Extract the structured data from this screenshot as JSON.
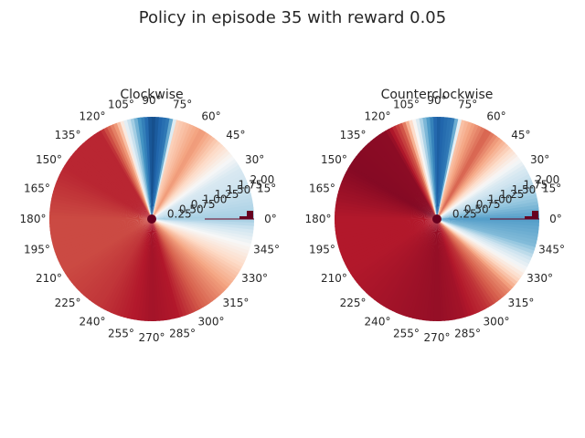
{
  "figure_title": "Policy in episode 35 with reward 0.05",
  "chart_data": [
    {
      "type": "heatmap",
      "projection": "polar",
      "title": "Clockwise",
      "angle_tick_labels": [
        "0°",
        "15°",
        "30°",
        "45°",
        "60°",
        "75°",
        "90°",
        "105°",
        "120°",
        "135°",
        "150°",
        "165°",
        "180°",
        "195°",
        "210°",
        "225°",
        "240°",
        "255°",
        "270°",
        "285°",
        "300°",
        "315°",
        "330°",
        "345°"
      ],
      "radial_tick_labels": [
        "0.25",
        "0.50",
        "0.75",
        "1.00",
        "1.25",
        "1.50",
        "1.75",
        "2.00"
      ],
      "radial_range": [
        0,
        2.0
      ],
      "colormap": "RdBu_r",
      "value_range": [
        0,
        1
      ],
      "value_by_angle_deg": [
        [
          0,
          0.33
        ],
        [
          15,
          0.38
        ],
        [
          30,
          0.42
        ],
        [
          45,
          0.58
        ],
        [
          60,
          0.72
        ],
        [
          75,
          0.62
        ],
        [
          80,
          0.15
        ],
        [
          90,
          0.05
        ],
        [
          97,
          0.2
        ],
        [
          105,
          0.45
        ],
        [
          110,
          0.7
        ],
        [
          120,
          0.88
        ],
        [
          150,
          0.88
        ],
        [
          180,
          0.83
        ],
        [
          210,
          0.83
        ],
        [
          240,
          0.86
        ],
        [
          270,
          0.92
        ],
        [
          285,
          0.9
        ],
        [
          300,
          0.8
        ],
        [
          315,
          0.72
        ],
        [
          330,
          0.62
        ],
        [
          345,
          0.5
        ],
        [
          360,
          0.33
        ]
      ]
    },
    {
      "type": "heatmap",
      "projection": "polar",
      "title": "Counterclockwise",
      "angle_tick_labels": [
        "0°",
        "15°",
        "30°",
        "45°",
        "60°",
        "75°",
        "90°",
        "105°",
        "120°",
        "135°",
        "150°",
        "165°",
        "180°",
        "195°",
        "210°",
        "225°",
        "240°",
        "255°",
        "270°",
        "285°",
        "300°",
        "315°",
        "330°",
        "345°"
      ],
      "radial_tick_labels": [
        "0.25",
        "0.50",
        "0.75",
        "1.00",
        "1.25",
        "1.50",
        "1.75",
        "2.00"
      ],
      "radial_range": [
        0,
        2.0
      ],
      "colormap": "RdBu_r",
      "value_range": [
        0,
        1
      ],
      "value_by_angle_deg": [
        [
          0,
          0.22
        ],
        [
          15,
          0.33
        ],
        [
          30,
          0.42
        ],
        [
          45,
          0.62
        ],
        [
          60,
          0.8
        ],
        [
          75,
          0.65
        ],
        [
          80,
          0.15
        ],
        [
          90,
          0.08
        ],
        [
          98,
          0.3
        ],
        [
          110,
          0.8
        ],
        [
          120,
          0.95
        ],
        [
          150,
          0.96
        ],
        [
          180,
          0.9
        ],
        [
          210,
          0.9
        ],
        [
          240,
          0.92
        ],
        [
          270,
          0.94
        ],
        [
          285,
          0.92
        ],
        [
          300,
          0.86
        ],
        [
          315,
          0.74
        ],
        [
          330,
          0.5
        ],
        [
          345,
          0.28
        ],
        [
          360,
          0.22
        ]
      ]
    }
  ]
}
